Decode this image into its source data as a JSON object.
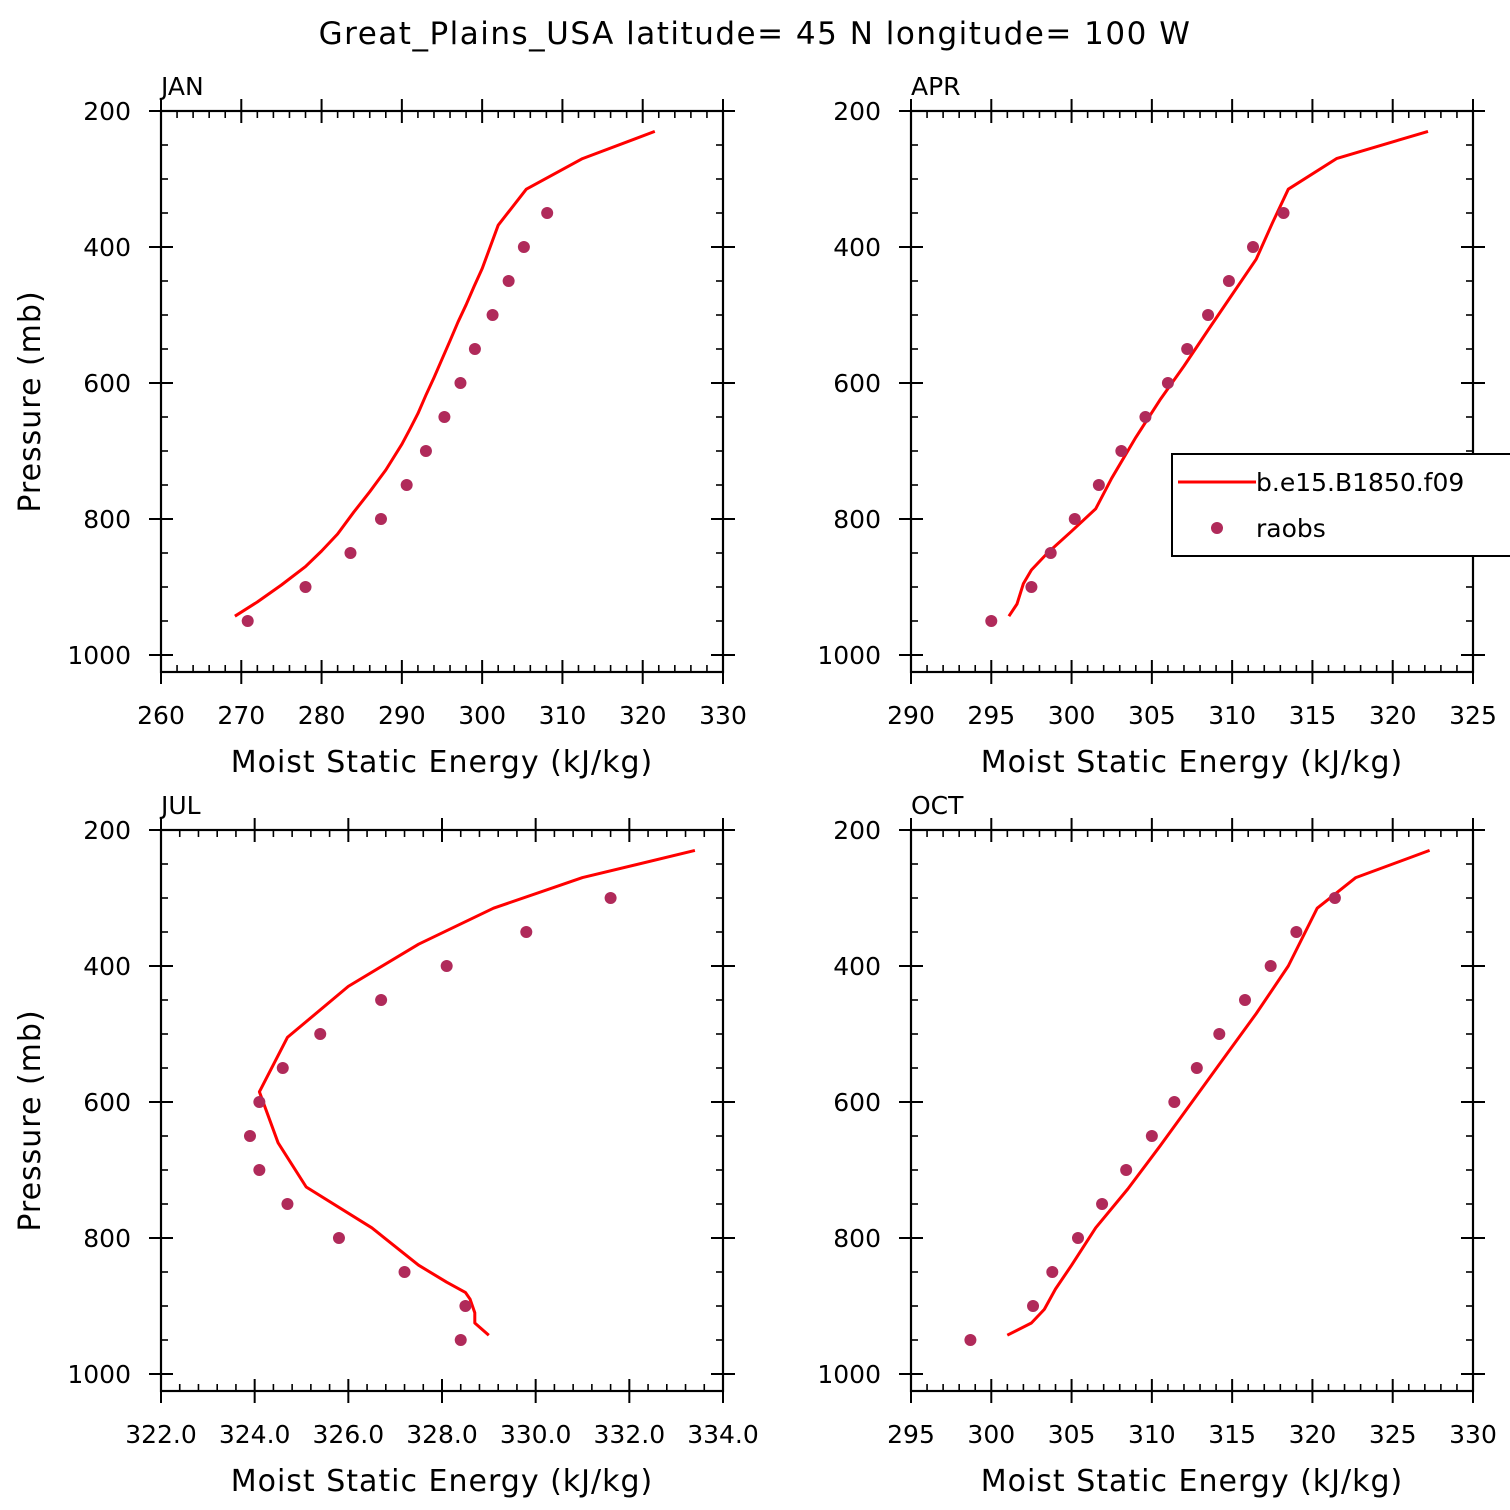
{
  "figure_title": "Great_Plains_USA  latitude= 45 N longitude= 100 W",
  "colors": {
    "model_line": "#ff0000",
    "obs_marker": "#b02a5a",
    "axis": "#000000"
  },
  "legend": {
    "entries": [
      {
        "label": "b.e15.B1850.f09",
        "kind": "line"
      },
      {
        "label": "raobs",
        "kind": "marker"
      }
    ]
  },
  "chart_data": [
    {
      "type": "line",
      "title": "JAN",
      "xlabel": "Moist Static Energy (kJ/kg)",
      "ylabel": "Pressure (mb)",
      "xlim": [
        260,
        330
      ],
      "ylim": [
        1000,
        200
      ],
      "xticks": [
        "260",
        "270",
        "280",
        "290",
        "300",
        "310",
        "320",
        "330"
      ],
      "xtick_values": [
        260,
        270,
        280,
        290,
        300,
        310,
        320,
        330
      ],
      "yticks": [
        "200",
        "400",
        "600",
        "800",
        "1000"
      ],
      "ytick_values": [
        200,
        400,
        600,
        800,
        1000
      ],
      "series": [
        {
          "name": "b.e15.B1850.f09",
          "kind": "line",
          "x": [
            269.2,
            272,
            275,
            278,
            280,
            282,
            284,
            286,
            288,
            290,
            291,
            292,
            293,
            294,
            295,
            296,
            297,
            298,
            299,
            300,
            302,
            305.5,
            312.5,
            321.5
          ],
          "y": [
            943,
            922,
            897,
            870,
            847,
            822,
            790,
            760,
            728,
            690,
            668,
            645,
            618,
            592,
            565,
            538,
            510,
            485,
            458,
            432,
            368,
            315,
            270,
            230
          ]
        },
        {
          "name": "raobs",
          "kind": "scatter",
          "x": [
            270.8,
            278,
            283.6,
            287.4,
            290.6,
            293,
            295.3,
            297.3,
            299.1,
            301.3,
            303.3,
            305.2,
            308.1
          ],
          "y": [
            950,
            900,
            850,
            800,
            750,
            700,
            650,
            600,
            550,
            500,
            450,
            400,
            350
          ]
        }
      ]
    },
    {
      "type": "line",
      "title": "APR",
      "xlabel": "Moist Static Energy (kJ/kg)",
      "ylabel": "",
      "xlim": [
        290,
        325
      ],
      "ylim": [
        1000,
        200
      ],
      "xticks": [
        "290",
        "295",
        "300",
        "305",
        "310",
        "315",
        "320",
        "325"
      ],
      "xtick_values": [
        290,
        295,
        300,
        305,
        310,
        315,
        320,
        325
      ],
      "yticks": [
        "200",
        "400",
        "600",
        "800",
        "1000"
      ],
      "ytick_values": [
        200,
        400,
        600,
        800,
        1000
      ],
      "series": [
        {
          "name": "b.e15.B1850.f09",
          "kind": "line",
          "x": [
            296.1,
            296.6,
            297,
            297.5,
            298.5,
            300,
            301.5,
            302.5,
            304,
            305.5,
            307,
            308.5,
            310,
            311.5,
            312.5,
            313.5,
            316.5,
            322.2
          ],
          "y": [
            943,
            925,
            895,
            875,
            850,
            818,
            785,
            740,
            680,
            625,
            575,
            522,
            470,
            418,
            365,
            315,
            270,
            230
          ]
        },
        {
          "name": "raobs",
          "kind": "scatter",
          "x": [
            295,
            297.5,
            298.7,
            300.2,
            301.7,
            303.1,
            304.6,
            306,
            307.2,
            308.5,
            309.8,
            311.3,
            313.2
          ],
          "y": [
            950,
            900,
            850,
            800,
            750,
            700,
            650,
            600,
            550,
            500,
            450,
            400,
            350
          ]
        }
      ]
    },
    {
      "type": "line",
      "title": "JUL",
      "xlabel": "Moist Static Energy (kJ/kg)",
      "ylabel": "Pressure (mb)",
      "xlim": [
        322,
        334
      ],
      "ylim": [
        1000,
        200
      ],
      "xticks": [
        "322.0",
        "324.0",
        "326.0",
        "328.0",
        "330.0",
        "332.0",
        "334.0"
      ],
      "xtick_values": [
        322,
        324,
        326,
        328,
        330,
        332,
        334
      ],
      "yticks": [
        "200",
        "400",
        "600",
        "800",
        "1000"
      ],
      "ytick_values": [
        200,
        400,
        600,
        800,
        1000
      ],
      "series": [
        {
          "name": "b.e15.B1850.f09",
          "kind": "line",
          "x": [
            329,
            328.7,
            328.7,
            328.6,
            328.5,
            328.1,
            327.5,
            326.5,
            325.1,
            324.5,
            324.1,
            324.7,
            326,
            327.5,
            329.1,
            331,
            333.4
          ],
          "y": [
            943,
            925,
            910,
            890,
            880,
            865,
            840,
            785,
            725,
            660,
            585,
            505,
            430,
            368,
            315,
            270,
            230
          ]
        },
        {
          "name": "raobs",
          "kind": "scatter",
          "x": [
            328.4,
            328.5,
            327.2,
            325.8,
            324.7,
            324.1,
            323.9,
            324.1,
            324.6,
            325.4,
            326.7,
            328.1,
            329.8,
            331.6
          ],
          "y": [
            950,
            900,
            850,
            800,
            750,
            700,
            650,
            600,
            550,
            500,
            450,
            400,
            350,
            300
          ]
        }
      ]
    },
    {
      "type": "line",
      "title": "OCT",
      "xlabel": "Moist Static Energy (kJ/kg)",
      "ylabel": "",
      "xlim": [
        295,
        330
      ],
      "ylim": [
        1000,
        200
      ],
      "xticks": [
        "295",
        "300",
        "305",
        "310",
        "315",
        "320",
        "325",
        "330"
      ],
      "xtick_values": [
        295,
        300,
        305,
        310,
        315,
        320,
        325,
        330
      ],
      "yticks": [
        "200",
        "400",
        "600",
        "800",
        "1000"
      ],
      "ytick_values": [
        200,
        400,
        600,
        800,
        1000
      ],
      "series": [
        {
          "name": "b.e15.B1850.f09",
          "kind": "line",
          "x": [
            301,
            302.5,
            303.3,
            304,
            305,
            306.5,
            308.5,
            310.5,
            312.5,
            314.5,
            316.5,
            318.5,
            320.3,
            322.7,
            327.3
          ],
          "y": [
            943,
            925,
            905,
            875,
            840,
            785,
            728,
            665,
            600,
            535,
            470,
            400,
            315,
            270,
            230
          ]
        },
        {
          "name": "raobs",
          "kind": "scatter",
          "x": [
            298.7,
            302.6,
            303.8,
            305.4,
            306.9,
            308.4,
            310,
            311.4,
            312.8,
            314.2,
            315.8,
            317.4,
            319,
            321.4
          ],
          "y": [
            950,
            900,
            850,
            800,
            750,
            700,
            650,
            600,
            550,
            500,
            450,
            400,
            350,
            300
          ]
        }
      ]
    }
  ]
}
